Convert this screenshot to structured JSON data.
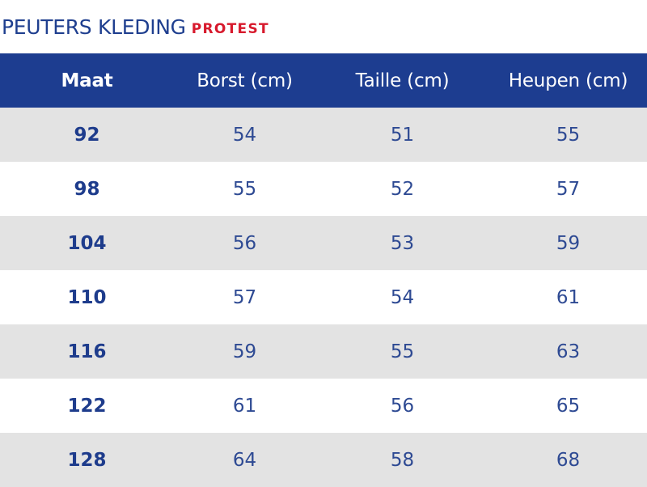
{
  "header": {
    "title": "PEUTERS KLEDING",
    "brand": "PROTEST"
  },
  "colors": {
    "header_bg": "#1d3d90",
    "title_text": "#1f3f8f",
    "brand_text": "#d7192c",
    "row_alt_bg": "#e3e3e3",
    "cell_text": "#2e4a93"
  },
  "table": {
    "columns": [
      "Maat",
      "Borst (cm)",
      "Taille (cm)",
      "Heupen (cm)"
    ],
    "rows": [
      [
        "92",
        "54",
        "51",
        "55"
      ],
      [
        "98",
        "55",
        "52",
        "57"
      ],
      [
        "104",
        "56",
        "53",
        "59"
      ],
      [
        "110",
        "57",
        "54",
        "61"
      ],
      [
        "116",
        "59",
        "55",
        "63"
      ],
      [
        "122",
        "61",
        "56",
        "65"
      ],
      [
        "128",
        "64",
        "58",
        "68"
      ]
    ]
  }
}
